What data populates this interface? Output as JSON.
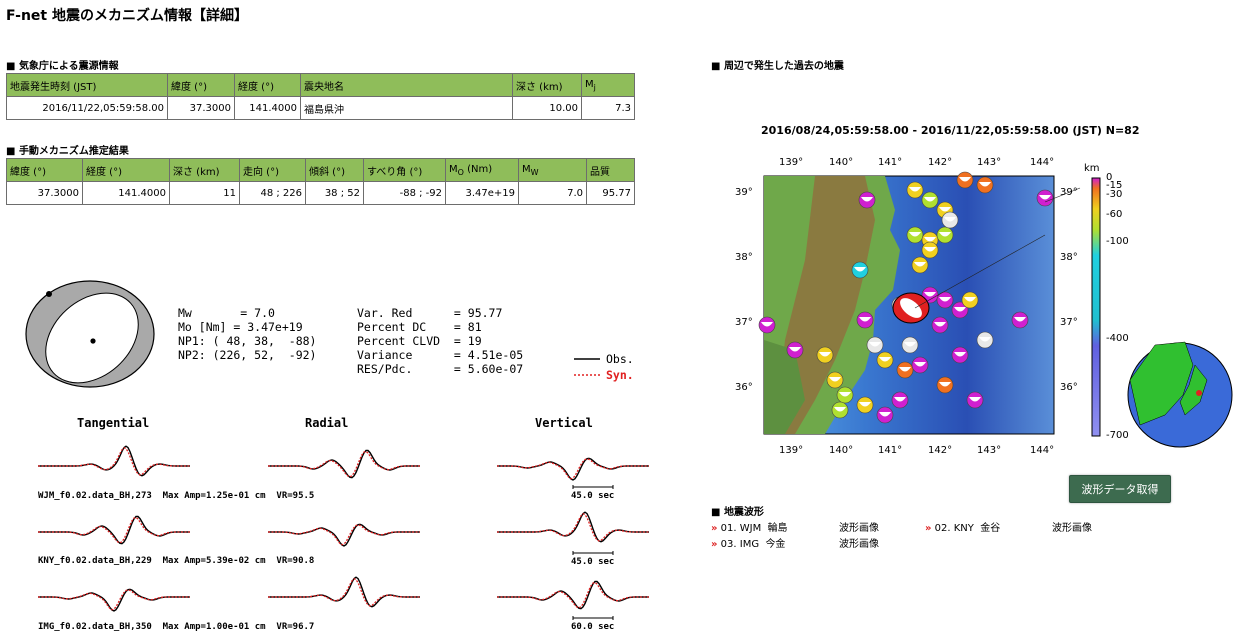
{
  "page": {
    "title": "F-net 地震のメカニズム情報【詳細】"
  },
  "jma": {
    "heading": "気象庁による震源情報",
    "headers": [
      "地震発生時刻 (JST)",
      "緯度 (°)",
      "経度 (°)",
      "震央地名",
      "深さ (km)",
      "Mj"
    ],
    "row": [
      "2016/11/22,05:59:58.00",
      "37.3000",
      "141.4000",
      "福島県沖",
      "10.00",
      "7.3"
    ]
  },
  "mech": {
    "heading": "手動メカニズム推定結果",
    "headers": [
      "緯度 (°)",
      "経度 (°)",
      "深さ (km)",
      "走向 (°)",
      "傾斜 (°)",
      "すべり角 (°)",
      "Mo (Nm)",
      "Mw",
      "品質"
    ],
    "row": [
      "37.3000",
      "141.4000",
      "11",
      "48 ; 226",
      "38 ; 52",
      "-88 ; -92",
      "3.47e+19",
      "7.0",
      "95.77"
    ]
  },
  "params": {
    "left": [
      "Mw       = 7.0",
      "Mo [Nm] = 3.47e+19",
      "NP1: ( 48, 38,  -88)",
      "NP2: (226, 52,  -92)"
    ],
    "right": [
      "Var. Red      = 95.77",
      "Percent DC    = 81",
      "Percent CLVD  = 19",
      "Variance      = 4.51e-05",
      "RES/Pdc.      = 5.60e-07"
    ],
    "legend_obs": "Obs.",
    "legend_syn": "Syn."
  },
  "waveforms": {
    "components": [
      "Tangential",
      "Radial",
      "Vertical"
    ],
    "stations": [
      {
        "label": "WJM_f0.02.data_BH,273  Max Amp=1.25e-01 cm  VR=95.5",
        "scale": "45.0 sec"
      },
      {
        "label": "KNY_f0.02.data_BH,229  Max Amp=5.39e-02 cm  VR=90.8",
        "scale": "45.0 sec"
      },
      {
        "label": "IMG_f0.02.data_BH,350  Max Amp=1.00e-01 cm  VR=96.7",
        "scale": "60.0 sec"
      }
    ],
    "colors": {
      "obs": "#000000",
      "syn": "#e02020"
    }
  },
  "map": {
    "heading": "周辺で発生した過去の地震",
    "title": "2016/08/24,05:59:58.00 - 2016/11/22,05:59:58.00 (JST)  N=82",
    "lon_ticks": [
      "139°",
      "140°",
      "141°",
      "142°",
      "143°",
      "144°"
    ],
    "lat_ticks": [
      "39°",
      "38°",
      "37°",
      "36°"
    ],
    "depth_unit": "km",
    "depth_ticks": [
      "0",
      "-15",
      "-30",
      "-60",
      "-100",
      "-400",
      "-700"
    ]
  },
  "download": {
    "label": "波形データ取得"
  },
  "wave_list": {
    "heading": "地震波形",
    "items": [
      {
        "code": "01. WJM",
        "name": "輪島",
        "link": "波形画像"
      },
      {
        "code": "02. KNY",
        "name": "金谷",
        "link": "波形画像"
      },
      {
        "code": "03. IMG",
        "name": "今金",
        "link": "波形画像"
      }
    ]
  }
}
